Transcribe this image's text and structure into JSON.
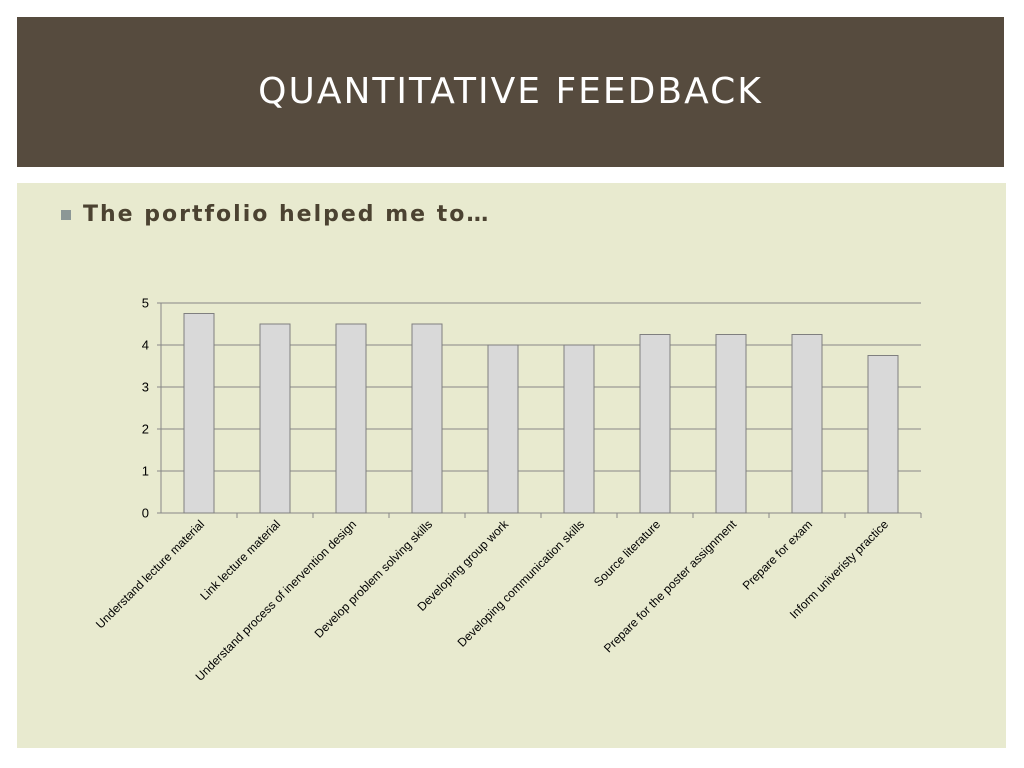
{
  "slide": {
    "title": "QUANTITATIVE FEEDBACK",
    "bullet": "The portfolio helped me to…"
  },
  "colors": {
    "title_bar": "#564b3e",
    "content_bg": "#e8eacf",
    "bar_fill": "#d9d9d9",
    "bar_stroke": "#7f7f7f",
    "grid": "#878787"
  },
  "chart_data": {
    "type": "bar",
    "categories": [
      "Understand lecture material",
      "Link lecture material",
      "Understand process of inervention design",
      "Develop problem solving skills",
      "Developing group work",
      "Developing communication skills",
      "Source literature",
      "Prepare for the poster assignment",
      "Prepare for  exam",
      "Inform univeristy practice"
    ],
    "values": [
      4.75,
      4.5,
      4.5,
      4.5,
      4.0,
      4.0,
      4.25,
      4.25,
      4.25,
      3.75
    ],
    "ylim": [
      0,
      5
    ],
    "yticks": [
      "0",
      "1",
      "2",
      "3",
      "4",
      "5"
    ],
    "grid": true,
    "legend": "none",
    "title": "",
    "xlabel": "",
    "ylabel": ""
  }
}
